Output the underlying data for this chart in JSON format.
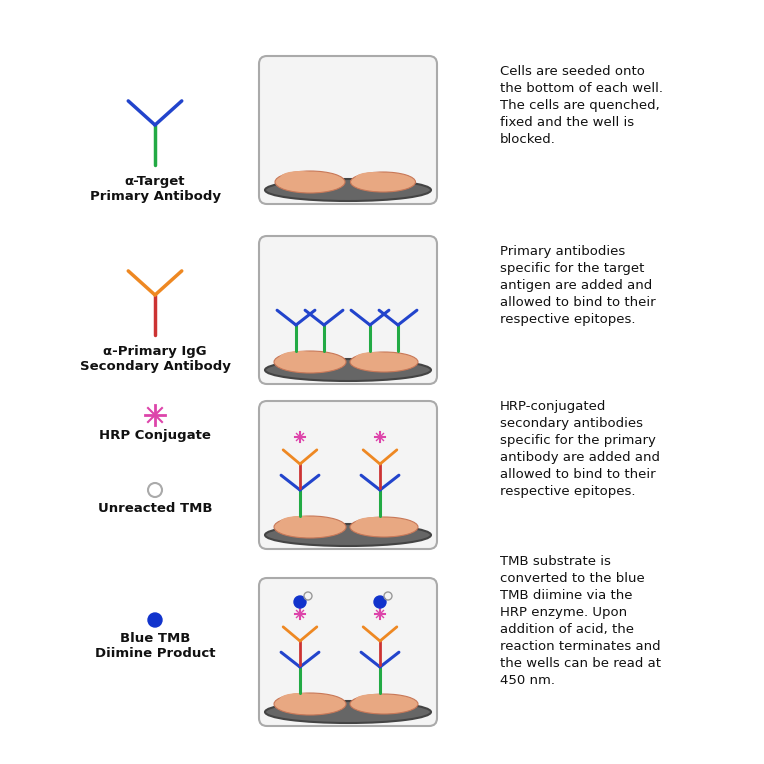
{
  "background_color": "#ffffff",
  "rows": [
    {
      "icon_label": "α-Target\nPrimary Antibody",
      "description": "Cells are seeded onto\nthe bottom of each well.\nThe cells are quenched,\nfixed and the well is\nblocked.",
      "well_content": "cells_only",
      "icon_type": "primary_antibody"
    },
    {
      "icon_label": "α-Primary IgG\nSecondary Antibody",
      "description": "Primary antibodies\nspecific for the target\nantigen are added and\nallowed to bind to their\nrespective epitopes.",
      "well_content": "with_primary",
      "icon_type": "secondary_antibody"
    },
    {
      "icon_label": "HRP Conjugate",
      "description": "HRP-conjugated\nsecondary antibodies\nspecific for the primary\nantibody are added and\nallowed to bind to their\nrespective epitopes.",
      "well_content": "with_hrp",
      "icon_type": "hrp_conjugate"
    },
    {
      "icon_label": "Blue TMB\nDiimine Product",
      "description": "TMB substrate is\nconverted to the blue\nTMB diimine via the\nHRP enzyme. Upon\naddition of acid, the\nreaction terminates and\nthe wells can be read at\n450 nm.",
      "well_content": "with_blue_tmb",
      "icon_type": "blue_tmb"
    }
  ],
  "cell_color": "#e8a882",
  "cell_edge": "#c87858",
  "antibody_green": "#22aa44",
  "antibody_blue": "#2244cc",
  "antibody_red": "#cc3333",
  "antibody_orange": "#ee8822",
  "hrp_color": "#dd44aa",
  "blue_tmb_color": "#1133cc",
  "well_fill": "#f4f4f4",
  "well_border": "#aaaaaa",
  "well_bottom": "#888888",
  "text_color": "#111111"
}
